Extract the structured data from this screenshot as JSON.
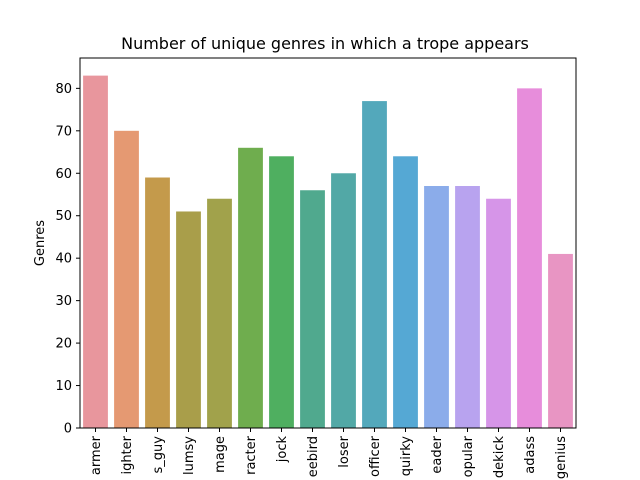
{
  "chart_data": {
    "type": "bar",
    "title": "Number of unique genres in which a trope appears",
    "xlabel": "",
    "ylabel": "Genres",
    "ylim": [
      0,
      87.15
    ],
    "yticks": [
      0,
      10,
      20,
      30,
      40,
      50,
      60,
      70,
      80
    ],
    "grid": false,
    "categories": [
      "armer",
      "ighter",
      "s_guy",
      "lumsy",
      "mage",
      "racter",
      "jock",
      "eebird",
      "loser",
      "officer",
      "quirky",
      "eader",
      "opular",
      "dekick",
      "adass",
      "genius"
    ],
    "values": [
      83,
      70,
      59,
      51,
      54,
      66,
      64,
      56,
      60,
      77,
      64,
      57,
      57,
      54,
      80,
      41
    ],
    "colors": [
      "#e8969d",
      "#e59972",
      "#c49a4b",
      "#a99e4a",
      "#a1a24b",
      "#6fad4e",
      "#4faf60",
      "#50a98e",
      "#52a8a6",
      "#53a8bb",
      "#55a8d4",
      "#8bacea",
      "#b8a3ef",
      "#d695e8",
      "#e78ddb",
      "#e895c3"
    ]
  }
}
